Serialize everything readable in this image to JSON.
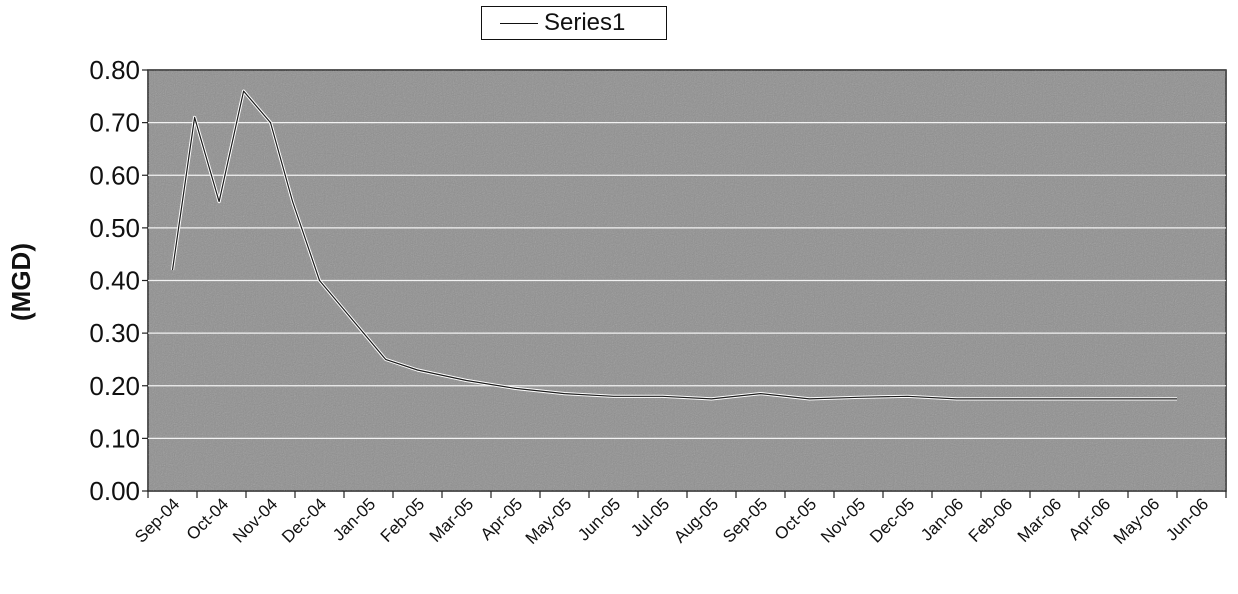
{
  "chart_data": {
    "type": "line",
    "title": "",
    "xlabel": "",
    "ylabel": "(MGD)",
    "ylim": [
      0,
      0.8
    ],
    "yticks": [
      "0.00",
      "0.10",
      "0.20",
      "0.30",
      "0.40",
      "0.50",
      "0.60",
      "0.70",
      "0.80"
    ],
    "categories": [
      "Sep-04",
      "Oct-04",
      "Nov-04",
      "Dec-04",
      "Jan-05",
      "Feb-05",
      "Mar-05",
      "Apr-05",
      "May-05",
      "Jun-05",
      "Jul-05",
      "Aug-05",
      "Sep-05",
      "Oct-05",
      "Nov-05",
      "Dec-05",
      "Jan-06",
      "Feb-06",
      "Mar-06",
      "Apr-06",
      "May-06",
      "Jun-06"
    ],
    "series": [
      {
        "name": "Series1",
        "color": "#ffffff",
        "x": [
          0,
          0.45,
          0.95,
          1.45,
          2.0,
          2.45,
          3.0,
          4.35,
          5.0,
          6.0,
          7.0,
          8.0,
          9.0,
          10.0,
          11.0,
          12.0,
          13.0,
          14.0,
          15.0,
          16.0,
          17.0,
          18.0,
          19.0,
          20.0,
          20.5
        ],
        "values": [
          0.42,
          0.71,
          0.55,
          0.76,
          0.7,
          0.55,
          0.4,
          0.25,
          0.23,
          0.21,
          0.195,
          0.185,
          0.18,
          0.18,
          0.175,
          0.185,
          0.175,
          0.178,
          0.18,
          0.175,
          0.175,
          0.175,
          0.175,
          0.175,
          0.175
        ]
      }
    ],
    "grid": true,
    "legend": "top",
    "plot_background": "#8f8f8f"
  }
}
